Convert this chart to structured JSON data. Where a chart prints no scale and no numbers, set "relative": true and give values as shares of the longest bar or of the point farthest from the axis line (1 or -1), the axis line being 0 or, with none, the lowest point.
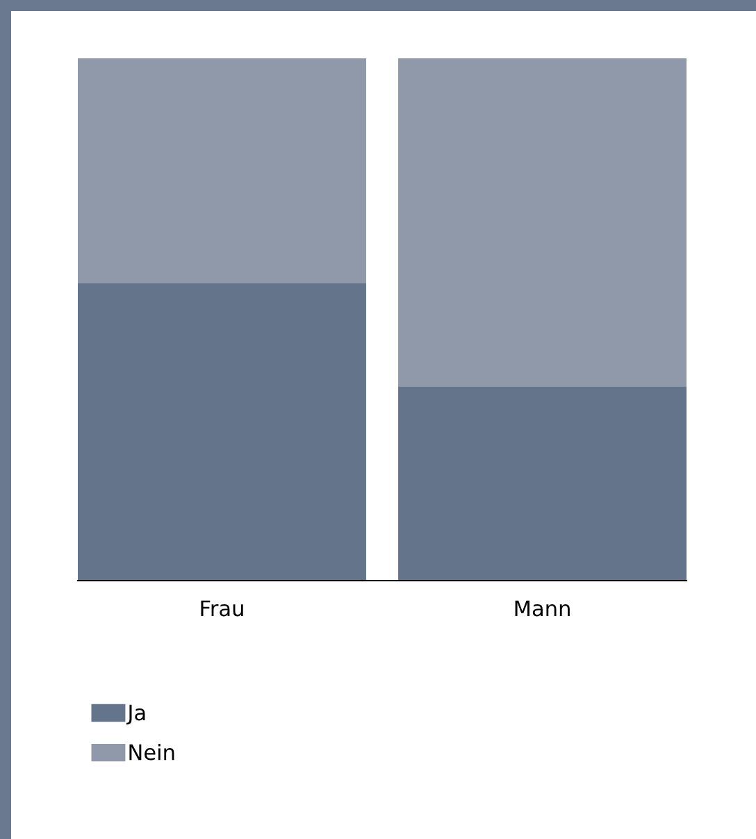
{
  "chart_data": {
    "type": "bar",
    "stacked": true,
    "relative": true,
    "categories": [
      "Frau",
      "Mann"
    ],
    "series": [
      {
        "name": "Ja",
        "color": "#64748a",
        "values": [
          0.569,
          0.372
        ]
      },
      {
        "name": "Nein",
        "color": "#9099a9",
        "values": [
          0.431,
          0.628
        ]
      }
    ],
    "legend": "bottom left",
    "grid": false
  }
}
